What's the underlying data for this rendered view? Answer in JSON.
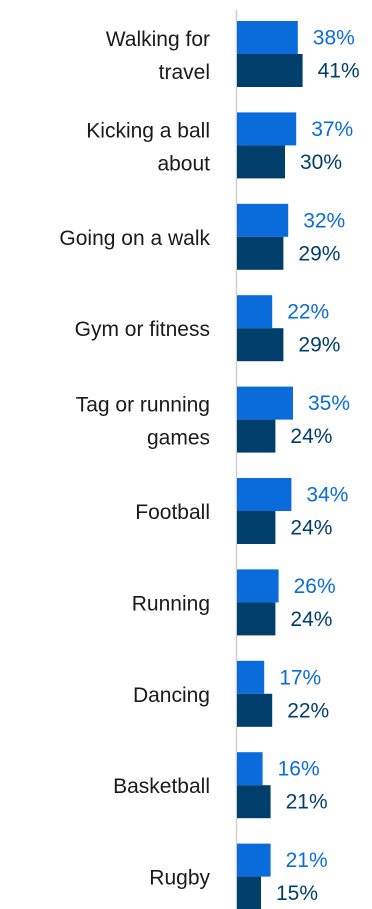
{
  "chart_data": {
    "type": "bar",
    "orientation": "horizontal",
    "categories": [
      "Walking for travel",
      "Kicking a ball about",
      "Going on a walk",
      "Gym or fitness",
      "Tag or running games",
      "Football",
      "Running",
      "Dancing",
      "Basketball",
      "Rugby"
    ],
    "series": [
      {
        "values": [
          38,
          37,
          32,
          22,
          35,
          34,
          26,
          17,
          16,
          21
        ],
        "color": "#0a6cdb"
      },
      {
        "values": [
          41,
          30,
          29,
          29,
          24,
          24,
          24,
          22,
          21,
          15
        ],
        "color": "#003f6b"
      }
    ],
    "value_suffix": "%",
    "xlim": [
      0,
      100
    ],
    "grid": false,
    "legend": "none"
  }
}
